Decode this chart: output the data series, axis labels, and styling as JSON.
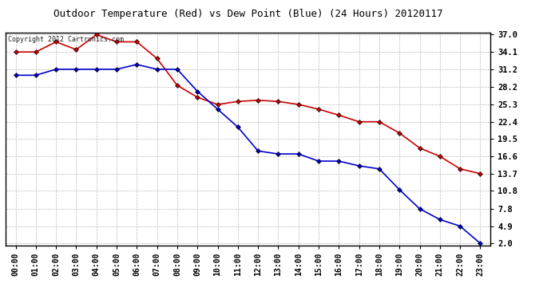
{
  "title": "Outdoor Temperature (Red) vs Dew Point (Blue) (24 Hours) 20120117",
  "copyright_text": "Copyright 2012 Cartronics.com",
  "hours": [
    0,
    1,
    2,
    3,
    4,
    5,
    6,
    7,
    8,
    9,
    10,
    11,
    12,
    13,
    14,
    15,
    16,
    17,
    18,
    19,
    20,
    21,
    22,
    23
  ],
  "temp_red": [
    34.1,
    34.1,
    35.8,
    34.5,
    37.0,
    35.8,
    35.8,
    33.0,
    28.5,
    26.5,
    25.3,
    25.8,
    26.0,
    25.8,
    25.3,
    24.5,
    23.5,
    22.4,
    22.4,
    20.5,
    18.0,
    16.6,
    14.5,
    13.7
  ],
  "dew_blue": [
    30.2,
    30.2,
    31.2,
    31.2,
    31.2,
    31.2,
    32.0,
    31.2,
    31.2,
    27.5,
    24.5,
    21.5,
    17.5,
    17.0,
    17.0,
    15.8,
    15.8,
    15.0,
    14.5,
    11.0,
    7.8,
    6.0,
    4.9,
    2.0
  ],
  "ylim_min": 2.0,
  "ylim_max": 37.0,
  "yticks": [
    2.0,
    4.9,
    7.8,
    10.8,
    13.7,
    16.6,
    19.5,
    22.4,
    25.3,
    28.2,
    31.2,
    34.1,
    37.0
  ],
  "bg_color": "#ffffff",
  "grid_color": "#bbbbbb",
  "red_color": "#cc0000",
  "blue_color": "#0000cc",
  "marker_color": "#000000",
  "title_fontsize": 9,
  "tick_fontsize": 7,
  "copyright_fontsize": 6
}
